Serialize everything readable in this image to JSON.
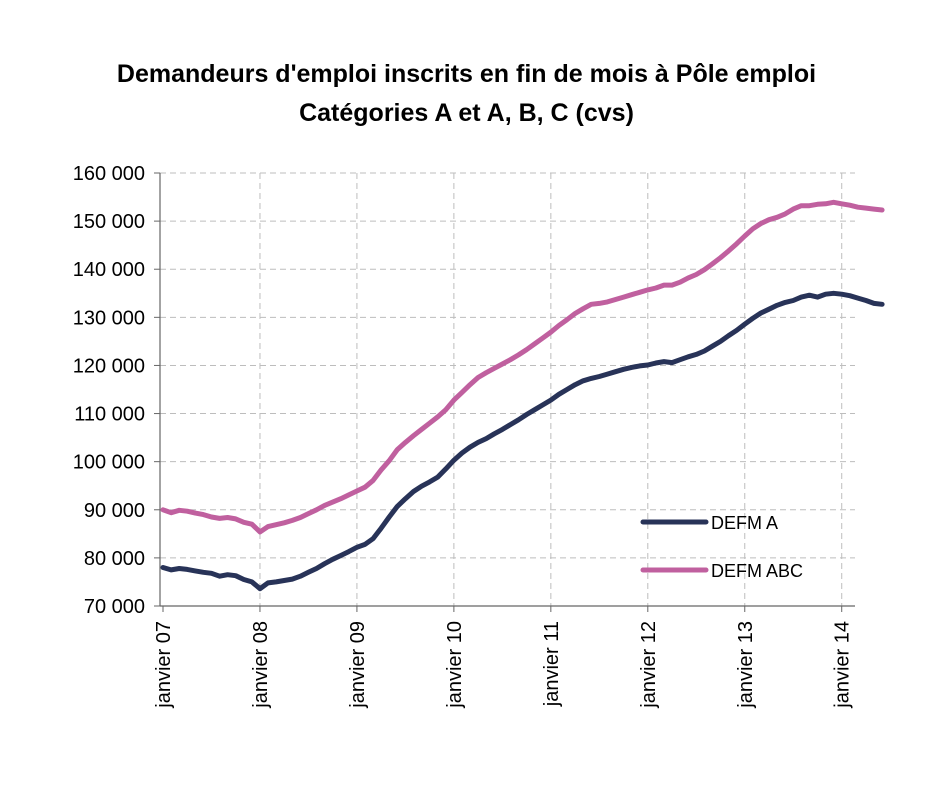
{
  "chart_data": {
    "type": "line",
    "title": "Demandeurs d'emploi inscrits en fin de mois à Pôle emploi",
    "subtitle": "Catégories A et A, B, C (cvs)",
    "xlabel": "",
    "ylabel": "",
    "ylim": [
      70000,
      160000
    ],
    "yticks": [
      "70 000",
      "80 000",
      "90 000",
      "100 000",
      "110 000",
      "120 000",
      "130 000",
      "140 000",
      "150 000",
      "160 000"
    ],
    "yticks_values": [
      70000,
      80000,
      90000,
      100000,
      110000,
      120000,
      130000,
      140000,
      150000,
      160000
    ],
    "xticks": [
      "janvier 07",
      "janvier 08",
      "janvier 09",
      "janvier 10",
      "janvier 11",
      "janvier 12",
      "janvier 13",
      "janvier 14"
    ],
    "x_start": "janvier 07",
    "x_step": "1 mois",
    "grid": true,
    "legend_position": "bottom-right",
    "series": [
      {
        "name": "DEFM A",
        "color": "#283358",
        "values": [
          78000,
          77500,
          77800,
          77600,
          77300,
          77000,
          76800,
          76200,
          76500,
          76300,
          75500,
          75000,
          73600,
          74800,
          75000,
          75300,
          75600,
          76200,
          77000,
          77800,
          78800,
          79700,
          80500,
          81300,
          82200,
          82800,
          84000,
          86200,
          88500,
          90700,
          92300,
          93800,
          94900,
          95800,
          96800,
          98500,
          100300,
          101800,
          103000,
          104000,
          104800,
          105800,
          106700,
          107700,
          108700,
          109800,
          110800,
          111800,
          112800,
          114000,
          115000,
          116000,
          116800,
          117300,
          117700,
          118200,
          118700,
          119200,
          119600,
          119900,
          120100,
          120500,
          120800,
          120600,
          121200,
          121800,
          122300,
          123000,
          124000,
          125000,
          126200,
          127300,
          128600,
          129800,
          130900,
          131700,
          132500,
          133100,
          133500,
          134200,
          134600,
          134200,
          134800,
          135000,
          134800,
          134500,
          134000,
          133500,
          132900,
          132700
        ]
      },
      {
        "name": "DEFM ABC",
        "color": "#c0609f",
        "values": [
          90000,
          89400,
          89900,
          89700,
          89300,
          89000,
          88500,
          88200,
          88400,
          88100,
          87400,
          87000,
          85400,
          86500,
          86900,
          87300,
          87800,
          88400,
          89200,
          90000,
          90900,
          91600,
          92300,
          93100,
          93900,
          94700,
          96100,
          98300,
          100200,
          102500,
          104000,
          105400,
          106700,
          108000,
          109300,
          110800,
          112800,
          114400,
          116000,
          117500,
          118500,
          119400,
          120300,
          121200,
          122200,
          123300,
          124500,
          125700,
          126900,
          128300,
          129500,
          130800,
          131800,
          132700,
          132900,
          133200,
          133700,
          134200,
          134700,
          135200,
          135700,
          136100,
          136700,
          136700,
          137300,
          138200,
          138900,
          139900,
          141100,
          142400,
          143800,
          145300,
          146900,
          148400,
          149500,
          150300,
          150800,
          151500,
          152500,
          153200,
          153200,
          153500,
          153600,
          153900,
          153600,
          153300,
          152900,
          152700,
          152500,
          152300
        ]
      }
    ]
  }
}
